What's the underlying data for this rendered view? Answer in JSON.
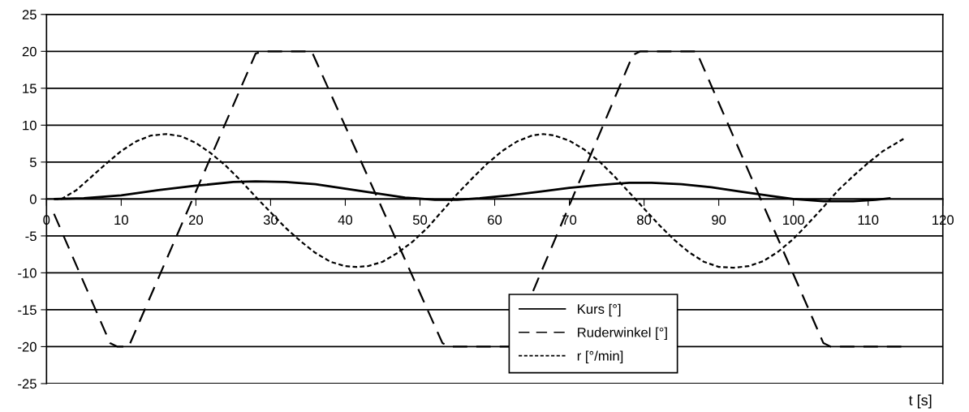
{
  "chart_data": {
    "type": "line",
    "xlabel": "t [s]",
    "xlim": [
      0,
      120
    ],
    "xticks": [
      0,
      10,
      20,
      30,
      40,
      50,
      60,
      70,
      80,
      90,
      100,
      110,
      120
    ],
    "ylim": [
      -25,
      25
    ],
    "yticks": [
      -25,
      -20,
      -15,
      -10,
      -5,
      0,
      5,
      10,
      15,
      20,
      25
    ],
    "grid": "y",
    "legend": "bottom",
    "marker": "none",
    "series": [
      {
        "name": "Kurs [°]",
        "color": "#000000",
        "line_style": "solid",
        "x": [
          1,
          5,
          10,
          15,
          20,
          25,
          28,
          32,
          36,
          40,
          44,
          48,
          52,
          55,
          58,
          62,
          66,
          70,
          74,
          78,
          81,
          85,
          89,
          93,
          97,
          100,
          104,
          108,
          111,
          113
        ],
        "values": [
          0,
          0.1,
          0.5,
          1.2,
          1.8,
          2.3,
          2.4,
          2.3,
          2.0,
          1.4,
          0.8,
          0.2,
          -0.1,
          -0.1,
          0.1,
          0.5,
          1.0,
          1.5,
          1.9,
          2.2,
          2.2,
          2.0,
          1.6,
          1.0,
          0.4,
          0,
          -0.3,
          -0.3,
          -0.1,
          0.1
        ]
      },
      {
        "name": "Ruderwinkel [°]",
        "color": "#000000",
        "line_style": "dashed",
        "x": [
          1,
          8.5,
          9.5,
          11,
          28,
          29,
          35.5,
          53,
          54,
          62,
          78.5,
          79.5,
          87,
          104,
          105,
          115
        ],
        "values": [
          -2,
          -19.5,
          -20,
          -20,
          19.7,
          20,
          20,
          -19.5,
          -20,
          -20,
          19.5,
          20,
          20,
          -19.5,
          -20,
          -20
        ]
      },
      {
        "name": "r [°/min]",
        "color": "#000000",
        "line_style": "dotted",
        "x": [
          1,
          2,
          4,
          6,
          8,
          10,
          12,
          14,
          16,
          18,
          20,
          22,
          24,
          26,
          28,
          30,
          32,
          34,
          36,
          38,
          40,
          41.5,
          43,
          45,
          47,
          49,
          51,
          53,
          55,
          57,
          59,
          61,
          63,
          65,
          66.5,
          68,
          70,
          72,
          74,
          76,
          78,
          80,
          82,
          84,
          86,
          88,
          90,
          92,
          94,
          96,
          98,
          100,
          102,
          104,
          106,
          108,
          110,
          112,
          115
        ],
        "values": [
          0,
          0,
          1.2,
          3,
          4.8,
          6.5,
          7.8,
          8.6,
          8.8,
          8.5,
          7.6,
          6.2,
          4.5,
          2.5,
          0.3,
          -1.8,
          -3.9,
          -5.7,
          -7.3,
          -8.5,
          -9.1,
          -9.2,
          -9.1,
          -8.5,
          -7.3,
          -5.8,
          -3.9,
          -1.6,
          0.7,
          2.8,
          4.8,
          6.5,
          7.8,
          8.6,
          8.8,
          8.6,
          7.9,
          6.7,
          5.1,
          3.1,
          0.9,
          -1.3,
          -3.5,
          -5.5,
          -7.2,
          -8.5,
          -9.2,
          -9.3,
          -9.1,
          -8.4,
          -7.1,
          -5.4,
          -3.3,
          -1.1,
          1.2,
          3.1,
          4.9,
          6.5,
          8.3
        ]
      }
    ]
  }
}
